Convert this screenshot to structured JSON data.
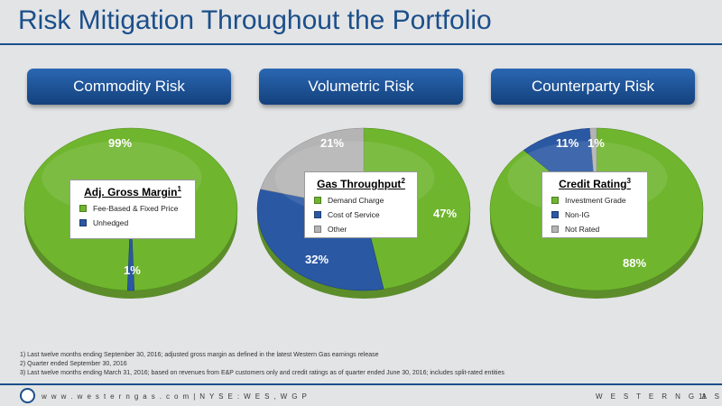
{
  "title": "Risk Mitigation Throughout the Portfolio",
  "headers": [
    "Commodity Risk",
    "Volumetric Risk",
    "Counterparty Risk"
  ],
  "colors": {
    "green": "#6fb52e",
    "blue": "#2a58a3",
    "gray": "#b4b4b4",
    "navy": "#1b4f8a"
  },
  "chart_data": [
    {
      "type": "pie",
      "title": "Adj. Gross Margin",
      "title_sup": "1",
      "legend": [
        "Fee-Based & Fixed Price",
        "Unhedged"
      ],
      "values": [
        99,
        1
      ],
      "labels": [
        "99%",
        "1%"
      ]
    },
    {
      "type": "pie",
      "title": "Gas Throughput",
      "title_sup": "2",
      "legend": [
        "Demand Charge",
        "Cost of Service",
        "Other"
      ],
      "values": [
        47,
        32,
        21
      ],
      "labels": [
        "47%",
        "32%",
        "21%"
      ]
    },
    {
      "type": "pie",
      "title": "Credit Rating",
      "title_sup": "3",
      "legend": [
        "Investment Grade",
        "Non-IG",
        "Not Rated"
      ],
      "values": [
        88,
        11,
        1
      ],
      "labels": [
        "88%",
        "11%",
        "1%"
      ]
    }
  ],
  "footnotes": [
    "1)   Last twelve months ending September 30, 2016; adjusted gross margin as defined in the latest Western Gas earnings release",
    "2)   Quarter ended September 30, 2016",
    "3)   Last twelve months ending March 31, 2016; based on revenues from E&P customers only and credit ratings as of quarter ended June 30, 2016; includes split-rated entities"
  ],
  "footer": {
    "left": "w w w . w e s t e r n g a s . c o m  |  N Y S E :  W E S ,  W G P",
    "right": "W E S T E R N   G A S",
    "page": "11"
  }
}
